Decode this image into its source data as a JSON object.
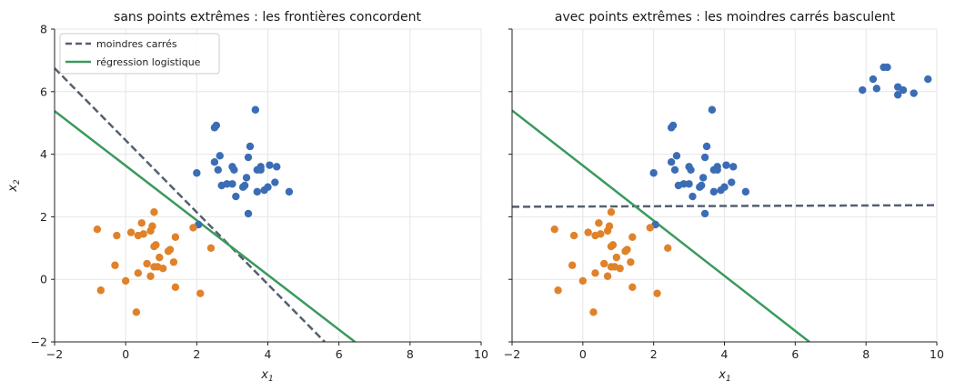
{
  "chart_data": [
    {
      "type": "scatter",
      "title": "sans points extrêmes : les frontières concordent",
      "xlabel": "x1",
      "ylabel": "x2",
      "xlim": [
        -2,
        10
      ],
      "ylim": [
        -2,
        8
      ],
      "xticks": [
        -2,
        0,
        2,
        4,
        6,
        8,
        10
      ],
      "yticks": [
        -2,
        0,
        2,
        4,
        6,
        8
      ],
      "grid": true,
      "legend_position": "top-left",
      "series": [
        {
          "name": "",
          "color": "#3b6db5",
          "points": [
            [
              2.0,
              3.4
            ],
            [
              2.5,
              4.85
            ],
            [
              2.55,
              4.92
            ],
            [
              2.5,
              3.75
            ],
            [
              2.6,
              3.5
            ],
            [
              2.65,
              3.95
            ],
            [
              2.7,
              3.0
            ],
            [
              2.85,
              3.05
            ],
            [
              3.0,
              3.05
            ],
            [
              3.0,
              3.6
            ],
            [
              3.05,
              3.5
            ],
            [
              3.1,
              2.65
            ],
            [
              3.3,
              2.95
            ],
            [
              3.4,
              3.25
            ],
            [
              3.45,
              3.9
            ],
            [
              3.5,
              4.25
            ],
            [
              3.65,
              5.42
            ],
            [
              3.7,
              2.8
            ],
            [
              3.7,
              3.5
            ],
            [
              3.8,
              3.6
            ],
            [
              3.8,
              3.5
            ],
            [
              3.9,
              2.85
            ],
            [
              4.0,
              2.95
            ],
            [
              4.05,
              3.65
            ],
            [
              4.2,
              3.1
            ],
            [
              4.25,
              3.6
            ],
            [
              4.6,
              2.8
            ],
            [
              3.45,
              2.1
            ],
            [
              2.05,
              1.75
            ],
            [
              3.35,
              3.0
            ]
          ]
        },
        {
          "name": "",
          "color": "#e0822a",
          "points": [
            [
              -0.8,
              1.6
            ],
            [
              -0.7,
              -0.35
            ],
            [
              -0.25,
              1.4
            ],
            [
              -0.3,
              0.45
            ],
            [
              0.0,
              -0.05
            ],
            [
              0.15,
              1.5
            ],
            [
              0.3,
              -1.05
            ],
            [
              0.35,
              0.2
            ],
            [
              0.35,
              1.4
            ],
            [
              0.45,
              1.8
            ],
            [
              0.5,
              1.45
            ],
            [
              0.6,
              0.5
            ],
            [
              0.7,
              1.55
            ],
            [
              0.7,
              0.1
            ],
            [
              0.75,
              1.7
            ],
            [
              0.8,
              2.15
            ],
            [
              0.8,
              1.05
            ],
            [
              0.85,
              1.1
            ],
            [
              0.8,
              0.4
            ],
            [
              0.9,
              0.4
            ],
            [
              0.95,
              0.7
            ],
            [
              1.05,
              0.35
            ],
            [
              1.2,
              0.9
            ],
            [
              1.25,
              0.95
            ],
            [
              1.35,
              0.55
            ],
            [
              1.4,
              1.35
            ],
            [
              1.4,
              -0.25
            ],
            [
              1.9,
              1.65
            ],
            [
              2.1,
              -0.45
            ],
            [
              2.4,
              1.0
            ]
          ]
        }
      ],
      "lines": [
        {
          "name": "moindres carrés",
          "style": "dashed",
          "color": "#555f70",
          "x": [
            -2,
            5.6
          ],
          "y": [
            6.75,
            -2.0
          ]
        },
        {
          "name": "régression logistique",
          "style": "solid",
          "color": "#3a9a5c",
          "x": [
            -2,
            6.45
          ],
          "y": [
            5.38,
            -2.0
          ]
        }
      ]
    },
    {
      "type": "scatter",
      "title": "avec points extrêmes : les moindres carrés basculent",
      "xlabel": "x1",
      "ylabel": "",
      "xlim": [
        -2,
        10
      ],
      "ylim": [
        -2,
        8
      ],
      "xticks": [
        -2,
        0,
        2,
        4,
        6,
        8,
        10
      ],
      "yticks": [
        -2,
        0,
        2,
        4,
        6,
        8
      ],
      "grid": true,
      "series": [
        {
          "name": "",
          "color": "#3b6db5",
          "points": [
            [
              2.0,
              3.4
            ],
            [
              2.5,
              4.85
            ],
            [
              2.55,
              4.92
            ],
            [
              2.5,
              3.75
            ],
            [
              2.6,
              3.5
            ],
            [
              2.65,
              3.95
            ],
            [
              2.7,
              3.0
            ],
            [
              2.85,
              3.05
            ],
            [
              3.0,
              3.05
            ],
            [
              3.0,
              3.6
            ],
            [
              3.05,
              3.5
            ],
            [
              3.1,
              2.65
            ],
            [
              3.3,
              2.95
            ],
            [
              3.4,
              3.25
            ],
            [
              3.45,
              3.9
            ],
            [
              3.5,
              4.25
            ],
            [
              3.65,
              5.42
            ],
            [
              3.7,
              2.8
            ],
            [
              3.7,
              3.5
            ],
            [
              3.8,
              3.6
            ],
            [
              3.8,
              3.5
            ],
            [
              3.9,
              2.85
            ],
            [
              4.0,
              2.95
            ],
            [
              4.05,
              3.65
            ],
            [
              4.2,
              3.1
            ],
            [
              4.25,
              3.6
            ],
            [
              4.6,
              2.8
            ],
            [
              3.45,
              2.1
            ],
            [
              2.05,
              1.75
            ],
            [
              3.35,
              3.0
            ],
            [
              7.9,
              6.05
            ],
            [
              8.2,
              6.4
            ],
            [
              8.3,
              6.1
            ],
            [
              8.5,
              6.78
            ],
            [
              8.6,
              6.78
            ],
            [
              8.9,
              6.15
            ],
            [
              8.9,
              5.9
            ],
            [
              9.05,
              6.05
            ],
            [
              9.35,
              5.95
            ],
            [
              9.75,
              6.4
            ]
          ]
        },
        {
          "name": "",
          "color": "#e0822a",
          "points": [
            [
              -0.8,
              1.6
            ],
            [
              -0.7,
              -0.35
            ],
            [
              -0.25,
              1.4
            ],
            [
              -0.3,
              0.45
            ],
            [
              0.0,
              -0.05
            ],
            [
              0.15,
              1.5
            ],
            [
              0.3,
              -1.05
            ],
            [
              0.35,
              0.2
            ],
            [
              0.35,
              1.4
            ],
            [
              0.45,
              1.8
            ],
            [
              0.5,
              1.45
            ],
            [
              0.6,
              0.5
            ],
            [
              0.7,
              1.55
            ],
            [
              0.7,
              0.1
            ],
            [
              0.75,
              1.7
            ],
            [
              0.8,
              2.15
            ],
            [
              0.8,
              1.05
            ],
            [
              0.85,
              1.1
            ],
            [
              0.8,
              0.4
            ],
            [
              0.9,
              0.4
            ],
            [
              0.95,
              0.7
            ],
            [
              1.05,
              0.35
            ],
            [
              1.2,
              0.9
            ],
            [
              1.25,
              0.95
            ],
            [
              1.35,
              0.55
            ],
            [
              1.4,
              1.35
            ],
            [
              1.4,
              -0.25
            ],
            [
              1.9,
              1.65
            ],
            [
              2.1,
              -0.45
            ],
            [
              2.4,
              1.0
            ]
          ]
        }
      ],
      "lines": [
        {
          "name": "moindres carrés",
          "style": "dashed",
          "color": "#555f70",
          "x": [
            -2,
            10
          ],
          "y": [
            2.32,
            2.37
          ]
        },
        {
          "name": "régression logistique",
          "style": "solid",
          "color": "#3a9a5c",
          "x": [
            -2,
            6.4
          ],
          "y": [
            5.4,
            -2.0
          ]
        }
      ]
    }
  ]
}
